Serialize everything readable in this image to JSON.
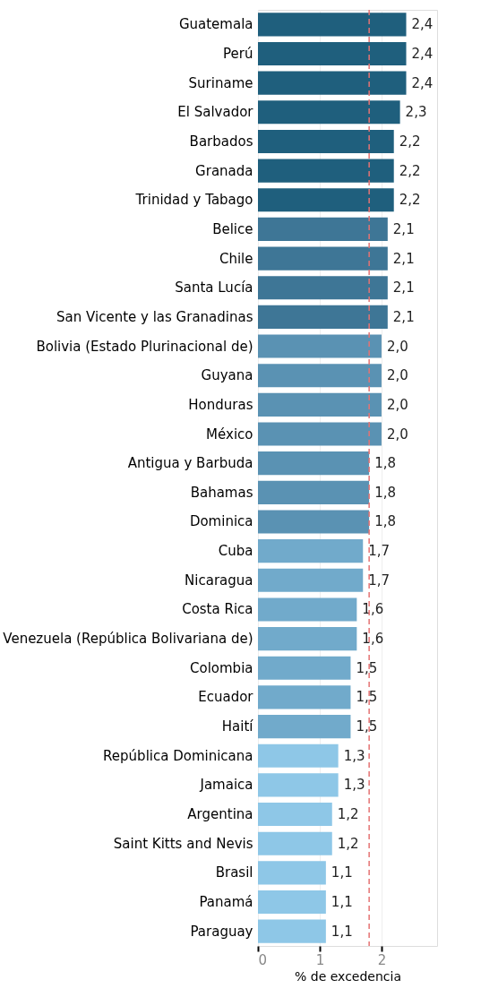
{
  "chart_data": {
    "type": "bar",
    "orientation": "horizontal",
    "xlabel": "% de excedencia",
    "categories": [
      "Guatemala",
      "Perú",
      "Suriname",
      "El Salvador",
      "Barbados",
      "Granada",
      "Trinidad y Tabago",
      "Belice",
      "Chile",
      "Santa Lucía",
      "San Vicente y las Granadinas",
      "Bolivia (Estado Plurinacional de)",
      "Guyana",
      "Honduras",
      "México",
      "Antigua y Barbuda",
      "Bahamas",
      "Dominica",
      "Cuba",
      "Nicaragua",
      "Costa Rica",
      "Venezuela (República Bolivariana de)",
      "Colombia",
      "Ecuador",
      "Haití",
      "República Dominicana",
      "Jamaica",
      "Argentina",
      "Saint Kitts and Nevis",
      "Brasil",
      "Panamá",
      "Paraguay"
    ],
    "values": [
      2.4,
      2.4,
      2.4,
      2.3,
      2.2,
      2.2,
      2.2,
      2.1,
      2.1,
      2.1,
      2.1,
      2.0,
      2.0,
      2.0,
      2.0,
      1.8,
      1.8,
      1.8,
      1.7,
      1.7,
      1.6,
      1.6,
      1.5,
      1.5,
      1.5,
      1.3,
      1.3,
      1.2,
      1.2,
      1.1,
      1.1,
      1.1
    ],
    "value_labels": [
      "2,4",
      "2,4",
      "2,4",
      "2,3",
      "2,2",
      "2,2",
      "2,2",
      "2,1",
      "2,1",
      "2,1",
      "2,1",
      "2,0",
      "2,0",
      "2,0",
      "2,0",
      "1,8",
      "1,8",
      "1,8",
      "1,7",
      "1,7",
      "1,6",
      "1,6",
      "1,5",
      "1,5",
      "1,5",
      "1,3",
      "1,3",
      "1,2",
      "1,2",
      "1,1",
      "1,1",
      "1,1"
    ],
    "colors": [
      "#1f5f7d",
      "#1f5f7d",
      "#1f5f7d",
      "#1f5f7d",
      "#1f5f7d",
      "#1f5f7d",
      "#1f5f7d",
      "#3e7696",
      "#3e7696",
      "#3e7696",
      "#3e7696",
      "#5a92b3",
      "#5a92b3",
      "#5a92b3",
      "#5a92b3",
      "#5a92b3",
      "#5a92b3",
      "#5a92b3",
      "#71aacb",
      "#71aacb",
      "#71aacb",
      "#71aacb",
      "#71aacb",
      "#71aacb",
      "#71aacb",
      "#8ec7e7",
      "#8ec7e7",
      "#8ec7e7",
      "#8ec7e7",
      "#8ec7e7",
      "#8ec7e7",
      "#8ec7e7"
    ],
    "xlim": [
      0,
      2.9
    ],
    "xticks": [
      0,
      1,
      2
    ],
    "grid": "x",
    "ref_lines": [
      {
        "axis": "x",
        "value": 1.8,
        "color": "#e57373",
        "line_style": "dashed"
      }
    ]
  }
}
